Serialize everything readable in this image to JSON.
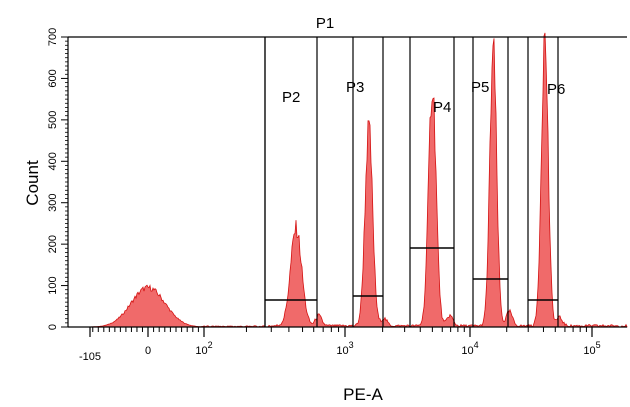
{
  "chart_data": {
    "type": "area",
    "xlabel": "PE-A",
    "ylabel": "Count",
    "ylim": [
      0,
      700
    ],
    "x_scale": "biexponential",
    "y_ticks": [
      0,
      100,
      200,
      300,
      400,
      500,
      600,
      700
    ],
    "y_tick_labels": [
      "0",
      "100",
      "200",
      "300",
      "400",
      "500",
      "600",
      "700"
    ],
    "x_tick_labels": [
      {
        "value": -105,
        "label": "-105"
      },
      {
        "value": 0,
        "label": "0"
      },
      {
        "value": 100,
        "label": "10",
        "exp": "2"
      },
      {
        "value": 1000,
        "label": "10",
        "exp": "3"
      },
      {
        "value": 10000,
        "label": "10",
        "exp": "4"
      },
      {
        "value": 100000,
        "label": "10",
        "exp": "5"
      }
    ],
    "colors": {
      "fill": "#f06a6a",
      "stroke": "#d41010",
      "axis": "#000000"
    },
    "peaks": [
      {
        "center": 0,
        "sigma_px": 17,
        "height": 95
      },
      {
        "center": 450,
        "sigma_px": 5.5,
        "height": 235
      },
      {
        "center": 1550,
        "sigma_px": 3.8,
        "height": 475
      },
      {
        "center": 5000,
        "sigma_px": 3.8,
        "height": 580
      },
      {
        "center": 15500,
        "sigma_px": 3.4,
        "height": 665
      },
      {
        "center": 41000,
        "sigma_px": 3.4,
        "height": 700
      }
    ],
    "minor_bumps": [
      {
        "center": 650,
        "height": 25
      },
      {
        "center": 2050,
        "height": 18
      },
      {
        "center": 6900,
        "height": 25
      },
      {
        "center": 21000,
        "height": 35
      },
      {
        "center": 54000,
        "height": 20
      }
    ],
    "gates": [
      {
        "name": "P1",
        "x_start": 270,
        "x_end": 2000000,
        "level": 700,
        "label_pos": "top"
      },
      {
        "name": "P2",
        "x_start": 270,
        "x_end": 630,
        "level": 65
      },
      {
        "name": "P3",
        "x_start": 1150,
        "x_end": 2000,
        "level": 75
      },
      {
        "name": "P4",
        "x_start": 3300,
        "x_end": 7400,
        "level": 190
      },
      {
        "name": "P5",
        "x_start": 10500,
        "x_end": 20500,
        "level": 115
      },
      {
        "name": "P6",
        "x_start": 30000,
        "x_end": 53000,
        "level": 65
      }
    ]
  }
}
